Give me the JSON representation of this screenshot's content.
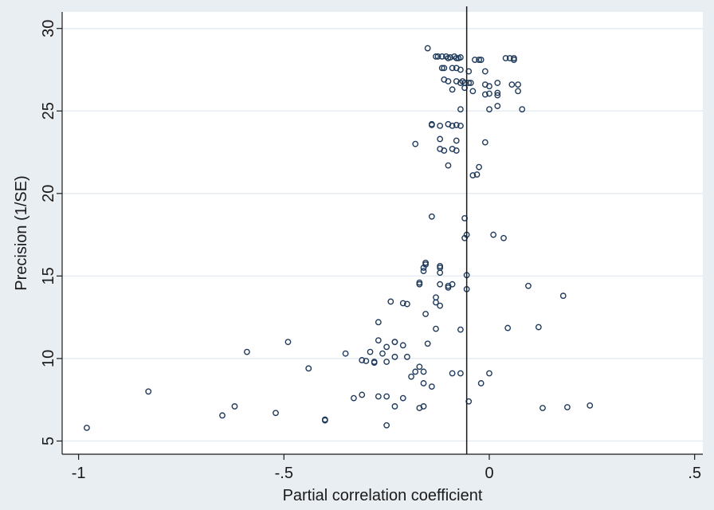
{
  "chart_data": {
    "type": "scatter",
    "title": "",
    "xlabel": "Partial correlation coefficient",
    "ylabel": "Precision (1/SE)",
    "xlim": [
      -1.04,
      0.52
    ],
    "ylim": [
      4.2,
      31.0
    ],
    "x_ticks": [
      -1,
      -0.5,
      0,
      0.5
    ],
    "x_tick_labels": [
      "-1",
      "-.5",
      "0",
      ".5"
    ],
    "y_ticks": [
      5,
      10,
      15,
      20,
      25,
      30
    ],
    "y_tick_labels": [
      "5",
      "10",
      "15",
      "20",
      "25",
      "30"
    ],
    "grid": "horizontal",
    "reference_line_x": -0.055,
    "colors": {
      "background": "#e9eef3",
      "plot": "#ffffff",
      "marker": "#1f3a5a",
      "grid": "#e6ecf1"
    },
    "points": [
      [
        -0.98,
        5.8
      ],
      [
        -0.83,
        8.0
      ],
      [
        -0.65,
        6.55
      ],
      [
        -0.62,
        7.1
      ],
      [
        -0.59,
        10.4
      ],
      [
        -0.52,
        6.7
      ],
      [
        -0.49,
        11.0
      ],
      [
        -0.44,
        9.4
      ],
      [
        -0.4,
        6.3
      ],
      [
        -0.4,
        6.25
      ],
      [
        -0.35,
        10.3
      ],
      [
        -0.33,
        7.6
      ],
      [
        -0.31,
        7.8
      ],
      [
        -0.31,
        9.9
      ],
      [
        -0.3,
        9.85
      ],
      [
        -0.29,
        10.4
      ],
      [
        -0.28,
        9.75
      ],
      [
        -0.28,
        9.8
      ],
      [
        -0.27,
        12.2
      ],
      [
        -0.27,
        11.1
      ],
      [
        -0.27,
        7.7
      ],
      [
        -0.26,
        10.3
      ],
      [
        -0.25,
        9.8
      ],
      [
        -0.25,
        10.7
      ],
      [
        -0.25,
        7.7
      ],
      [
        -0.25,
        5.95
      ],
      [
        -0.24,
        13.45
      ],
      [
        -0.23,
        11.0
      ],
      [
        -0.23,
        11.0
      ],
      [
        -0.23,
        7.1
      ],
      [
        -0.23,
        10.1
      ],
      [
        -0.21,
        13.35
      ],
      [
        -0.21,
        10.8
      ],
      [
        -0.21,
        7.6
      ],
      [
        -0.2,
        13.3
      ],
      [
        -0.2,
        10.1
      ],
      [
        -0.19,
        8.9
      ],
      [
        -0.18,
        9.2
      ],
      [
        -0.18,
        23.0
      ],
      [
        -0.17,
        14.5
      ],
      [
        -0.17,
        14.6
      ],
      [
        -0.17,
        9.5
      ],
      [
        -0.17,
        7.0
      ],
      [
        -0.16,
        8.5
      ],
      [
        -0.16,
        9.2
      ],
      [
        -0.16,
        7.1
      ],
      [
        -0.16,
        15.3
      ],
      [
        -0.16,
        15.5
      ],
      [
        -0.155,
        15.7
      ],
      [
        -0.155,
        15.8
      ],
      [
        -0.155,
        12.7
      ],
      [
        -0.15,
        28.8
      ],
      [
        -0.15,
        10.9
      ],
      [
        -0.14,
        18.6
      ],
      [
        -0.14,
        24.2
      ],
      [
        -0.14,
        24.15
      ],
      [
        -0.14,
        8.3
      ],
      [
        -0.13,
        13.4
      ],
      [
        -0.13,
        13.7
      ],
      [
        -0.13,
        11.8
      ],
      [
        -0.13,
        28.3
      ],
      [
        -0.125,
        28.3
      ],
      [
        -0.12,
        15.2
      ],
      [
        -0.12,
        15.5
      ],
      [
        -0.12,
        15.6
      ],
      [
        -0.12,
        14.5
      ],
      [
        -0.12,
        13.2
      ],
      [
        -0.12,
        24.1
      ],
      [
        -0.12,
        23.3
      ],
      [
        -0.12,
        22.7
      ],
      [
        -0.115,
        28.3
      ],
      [
        -0.115,
        27.6
      ],
      [
        -0.11,
        27.6
      ],
      [
        -0.11,
        26.9
      ],
      [
        -0.11,
        22.6
      ],
      [
        -0.105,
        28.3
      ],
      [
        -0.1,
        26.8
      ],
      [
        -0.1,
        24.2
      ],
      [
        -0.1,
        21.7
      ],
      [
        -0.1,
        14.4
      ],
      [
        -0.1,
        14.3
      ],
      [
        -0.1,
        28.2
      ],
      [
        -0.095,
        28.25
      ],
      [
        -0.09,
        27.6
      ],
      [
        -0.09,
        26.3
      ],
      [
        -0.09,
        24.1
      ],
      [
        -0.09,
        22.7
      ],
      [
        -0.09,
        14.5
      ],
      [
        -0.09,
        9.1
      ],
      [
        -0.085,
        28.3
      ],
      [
        -0.08,
        28.2
      ],
      [
        -0.08,
        27.6
      ],
      [
        -0.08,
        26.8
      ],
      [
        -0.08,
        24.15
      ],
      [
        -0.08,
        23.2
      ],
      [
        -0.08,
        22.6
      ],
      [
        -0.075,
        28.2
      ],
      [
        -0.07,
        28.25
      ],
      [
        -0.07,
        27.5
      ],
      [
        -0.07,
        26.7
      ],
      [
        -0.07,
        25.1
      ],
      [
        -0.07,
        24.1
      ],
      [
        -0.07,
        11.75
      ],
      [
        -0.07,
        9.1
      ],
      [
        -0.065,
        26.8
      ],
      [
        -0.06,
        26.7
      ],
      [
        -0.06,
        26.4
      ],
      [
        -0.06,
        18.5
      ],
      [
        -0.06,
        17.3
      ],
      [
        -0.055,
        17.5
      ],
      [
        -0.055,
        15.05
      ],
      [
        -0.055,
        14.2
      ],
      [
        -0.05,
        27.4
      ],
      [
        -0.05,
        26.7
      ],
      [
        -0.05,
        7.4
      ],
      [
        -0.045,
        26.7
      ],
      [
        -0.04,
        26.2
      ],
      [
        -0.04,
        21.1
      ],
      [
        -0.035,
        28.1
      ],
      [
        -0.03,
        21.15
      ],
      [
        -0.025,
        28.1
      ],
      [
        -0.025,
        21.6
      ],
      [
        -0.02,
        28.1
      ],
      [
        -0.02,
        8.5
      ],
      [
        -0.01,
        27.4
      ],
      [
        -0.01,
        26.6
      ],
      [
        -0.01,
        26.0
      ],
      [
        -0.01,
        23.1
      ],
      [
        0.0,
        26.5
      ],
      [
        0.0,
        26.05
      ],
      [
        0.0,
        25.1
      ],
      [
        0.0,
        9.1
      ],
      [
        0.01,
        17.5
      ],
      [
        0.02,
        26.7
      ],
      [
        0.02,
        25.95
      ],
      [
        0.02,
        26.1
      ],
      [
        0.02,
        25.3
      ],
      [
        0.035,
        17.3
      ],
      [
        0.04,
        28.2
      ],
      [
        0.045,
        11.85
      ],
      [
        0.05,
        28.2
      ],
      [
        0.055,
        26.6
      ],
      [
        0.06,
        28.1
      ],
      [
        0.06,
        28.2
      ],
      [
        0.07,
        26.6
      ],
      [
        0.07,
        26.2
      ],
      [
        0.08,
        25.1
      ],
      [
        0.095,
        14.4
      ],
      [
        0.12,
        11.9
      ],
      [
        0.13,
        7.0
      ],
      [
        0.18,
        13.8
      ],
      [
        0.19,
        7.05
      ],
      [
        0.245,
        7.15
      ]
    ]
  }
}
